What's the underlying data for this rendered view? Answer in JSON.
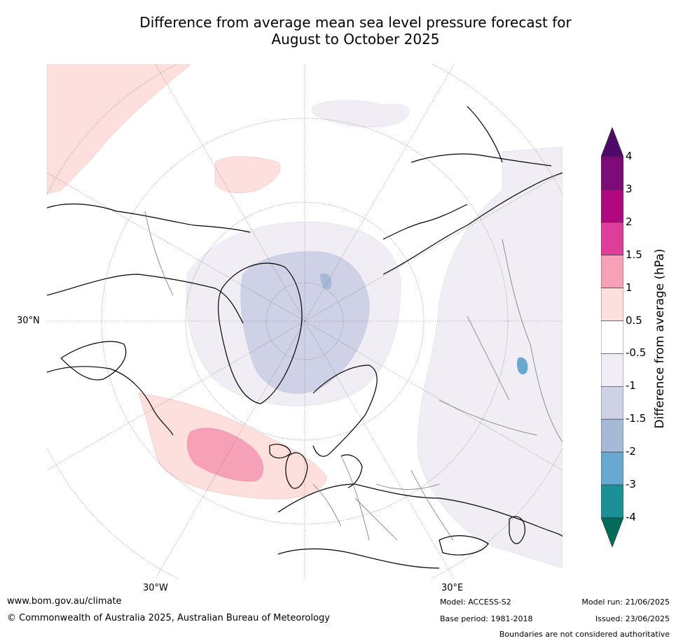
{
  "title_line1": "Difference from average mean sea level pressure forecast for",
  "title_line2": "August to October 2025",
  "map": {
    "projection": "north-polar-stereographic",
    "labels": {
      "lat_30n": "30°N",
      "lon_30w": "30°W",
      "lon_30e": "30°E"
    },
    "features": [
      "North Atlantic positive anomaly (1 to 1.5 hPa)",
      "Arctic/Greenland negative anomaly (-1 to -1.5 hPa)",
      "Eastern Europe/Russia weak negative anomaly (-0.5 to -1 hPa)"
    ]
  },
  "colorbar": {
    "title": "Difference from average (hPa)",
    "tick_labels": [
      "4",
      "3",
      "2",
      "1.5",
      "1",
      "0.5",
      "-0.5",
      "-1",
      "-1.5",
      "-2",
      "-3",
      "-4"
    ],
    "bins": [
      {
        "range": "> 4",
        "color": "#4d0a6b"
      },
      {
        "range": "3 to 4",
        "color": "#7d0b78"
      },
      {
        "range": "2 to 3",
        "color": "#b0087e"
      },
      {
        "range": "1.5 to 2",
        "color": "#df3d9a"
      },
      {
        "range": "1 to 1.5",
        "color": "#f7a1b8"
      },
      {
        "range": "0.5 to 1",
        "color": "#fde0dd"
      },
      {
        "range": "-0.5 to 0.5",
        "color": "#ffffff"
      },
      {
        "range": "-1 to -0.5",
        "color": "#f1edf4"
      },
      {
        "range": "-1.5 to -1",
        "color": "#cfd2e6"
      },
      {
        "range": "-2 to -1.5",
        "color": "#a6b9d6"
      },
      {
        "range": "-3 to -2",
        "color": "#67a9cf"
      },
      {
        "range": "-4 to -3",
        "color": "#1c9099"
      },
      {
        "range": "< -4",
        "color": "#016c59"
      }
    ]
  },
  "footer": {
    "website": "www.bom.gov.au/climate",
    "copyright": "© Commonwealth of Australia 2025, Australian Bureau of Meteorology",
    "model": "Model: ACCESS-S2",
    "base_period": "Base period: 1981-2018",
    "model_run": "Model run: 21/06/2025",
    "issued": "Issued: 23/06/2025",
    "boundaries": "Boundaries are not considered authoritative"
  }
}
